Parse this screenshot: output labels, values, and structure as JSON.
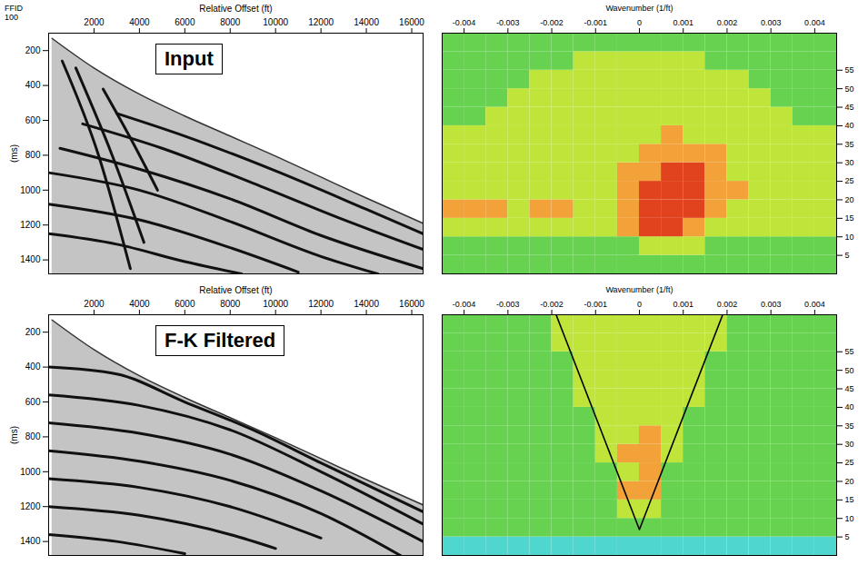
{
  "chart_data": [
    {
      "type": "seismic_gather",
      "title": "Input",
      "corner_label": [
        "FFID",
        "100"
      ],
      "xlabel": "Relative Offset (ft)",
      "ylabel": "(ms)",
      "xlim": [
        0,
        16500
      ],
      "xticks": [
        2000,
        4000,
        6000,
        8000,
        10000,
        12000,
        14000,
        16000
      ],
      "ylim": [
        100,
        1480
      ],
      "yticks": [
        200,
        400,
        600,
        800,
        1000,
        1200,
        1400
      ],
      "first_break": {
        "offset": [
          150,
          2000,
          4000,
          6000,
          8000,
          10000,
          12000,
          14000,
          16500
        ],
        "time": [
          130,
          300,
          450,
          575,
          690,
          805,
          925,
          1045,
          1190
        ]
      },
      "events": [
        {
          "offset": [
            600,
            2200,
            3600
          ],
          "time": [
            260,
            800,
            1450
          ]
        },
        {
          "offset": [
            1200,
            2800,
            4200
          ],
          "time": [
            300,
            800,
            1300
          ]
        },
        {
          "offset": [
            2400,
            3600,
            4800
          ],
          "time": [
            420,
            700,
            1000
          ]
        },
        {
          "offset": [
            3000,
            6000,
            10000,
            14000,
            16500
          ],
          "time": [
            560,
            690,
            890,
            1110,
            1250
          ]
        },
        {
          "offset": [
            1500,
            5000,
            9000,
            13000,
            16500
          ],
          "time": [
            620,
            760,
            960,
            1170,
            1340
          ]
        },
        {
          "offset": [
            500,
            4000,
            8000,
            12000,
            16500
          ],
          "time": [
            760,
            880,
            1050,
            1260,
            1450
          ]
        },
        {
          "offset": [
            0,
            4000,
            8000,
            12000,
            14500
          ],
          "time": [
            900,
            1000,
            1180,
            1380,
            1480
          ]
        },
        {
          "offset": [
            0,
            4000,
            8000,
            11000
          ],
          "time": [
            1080,
            1170,
            1330,
            1470
          ]
        },
        {
          "offset": [
            0,
            3000,
            6000,
            8500
          ],
          "time": [
            1250,
            1310,
            1410,
            1480
          ]
        }
      ]
    },
    {
      "type": "fk_spectrum",
      "xlabel": "Wavenumber (1/ft)",
      "xlim": [
        -0.0045,
        0.0045
      ],
      "xticks": [
        -0.004,
        -0.003,
        -0.002,
        -0.001,
        0,
        0.001,
        0.002,
        0.003,
        0.004
      ],
      "ylim": [
        0,
        65
      ],
      "yticks": [
        5,
        10,
        15,
        20,
        25,
        30,
        35,
        40,
        45,
        50,
        55
      ],
      "wavenumber_bins": [
        -0.0045,
        -0.004,
        -0.0035,
        -0.003,
        -0.0025,
        -0.002,
        -0.0015,
        -0.001,
        -0.0005,
        0,
        0.0005,
        0.001,
        0.0015,
        0.002,
        0.0025,
        0.003,
        0.0035,
        0.004,
        0.0045
      ],
      "frequency_bins": [
        0,
        5,
        10,
        15,
        20,
        25,
        30,
        35,
        40,
        45,
        50,
        55,
        60,
        65
      ],
      "cells": [
        [
          1,
          1,
          1,
          1,
          1,
          1,
          1,
          1,
          1,
          1,
          1,
          1,
          1,
          1,
          1,
          1,
          1,
          1
        ],
        [
          1,
          1,
          1,
          1,
          1,
          1,
          1,
          1,
          1,
          2,
          2,
          2,
          1,
          1,
          1,
          1,
          1,
          1
        ],
        [
          2,
          2,
          2,
          2,
          2,
          2,
          2,
          2,
          3,
          4,
          4,
          3,
          2,
          2,
          2,
          2,
          2,
          2
        ],
        [
          3,
          3,
          3,
          2,
          3,
          3,
          2,
          2,
          3,
          4,
          4,
          4,
          3,
          2,
          2,
          2,
          2,
          2
        ],
        [
          2,
          2,
          2,
          2,
          2,
          2,
          2,
          2,
          3,
          4,
          4,
          4,
          3,
          3,
          2,
          2,
          2,
          2
        ],
        [
          2,
          2,
          2,
          2,
          2,
          2,
          2,
          2,
          3,
          3,
          4,
          4,
          3,
          2,
          2,
          2,
          2,
          2
        ],
        [
          2,
          2,
          2,
          2,
          2,
          2,
          2,
          2,
          2,
          3,
          3,
          3,
          3,
          2,
          2,
          2,
          2,
          2
        ],
        [
          2,
          2,
          2,
          2,
          2,
          2,
          2,
          2,
          2,
          2,
          3,
          2,
          2,
          2,
          2,
          2,
          2,
          2
        ],
        [
          1,
          1,
          2,
          2,
          2,
          2,
          2,
          2,
          2,
          2,
          2,
          2,
          2,
          2,
          2,
          2,
          1,
          1
        ],
        [
          1,
          1,
          1,
          2,
          2,
          2,
          2,
          2,
          2,
          2,
          2,
          2,
          2,
          2,
          2,
          1,
          1,
          1
        ],
        [
          1,
          1,
          1,
          1,
          2,
          2,
          2,
          2,
          2,
          2,
          2,
          2,
          2,
          2,
          1,
          1,
          1,
          1
        ],
        [
          1,
          1,
          1,
          1,
          1,
          1,
          2,
          2,
          2,
          2,
          2,
          2,
          1,
          1,
          1,
          1,
          1,
          1
        ],
        [
          1,
          1,
          1,
          1,
          1,
          1,
          1,
          1,
          1,
          1,
          1,
          1,
          1,
          1,
          1,
          1,
          1,
          1
        ]
      ]
    },
    {
      "type": "seismic_gather",
      "title": "F-K Filtered",
      "xlabel": "Relative Offset (ft)",
      "ylabel": "(ms)",
      "xlim": [
        0,
        16500
      ],
      "xticks": [
        2000,
        4000,
        6000,
        8000,
        10000,
        12000,
        14000,
        16000
      ],
      "ylim": [
        100,
        1480
      ],
      "yticks": [
        200,
        400,
        600,
        800,
        1000,
        1200,
        1400
      ],
      "first_break": {
        "offset": [
          150,
          2000,
          4000,
          6000,
          8000,
          10000,
          12000,
          14000,
          16500
        ],
        "time": [
          130,
          300,
          450,
          575,
          690,
          805,
          925,
          1045,
          1190
        ]
      },
      "events": [
        {
          "offset": [
            0,
            3000,
            6000,
            9000,
            12000,
            16500
          ],
          "time": [
            400,
            440,
            600,
            760,
            950,
            1230
          ]
        },
        {
          "offset": [
            0,
            4000,
            8000,
            12000,
            16500
          ],
          "time": [
            560,
            620,
            760,
            1000,
            1300
          ]
        },
        {
          "offset": [
            0,
            4000,
            8000,
            12000,
            16500
          ],
          "time": [
            720,
            780,
            900,
            1110,
            1400
          ]
        },
        {
          "offset": [
            0,
            4000,
            8000,
            12000,
            15500
          ],
          "time": [
            880,
            940,
            1050,
            1240,
            1480
          ]
        },
        {
          "offset": [
            0,
            4000,
            8000,
            12000
          ],
          "time": [
            1040,
            1090,
            1200,
            1380
          ]
        },
        {
          "offset": [
            0,
            4000,
            8000,
            10000
          ],
          "time": [
            1200,
            1250,
            1360,
            1440
          ]
        },
        {
          "offset": [
            0,
            3000,
            6000
          ],
          "time": [
            1360,
            1400,
            1470
          ]
        }
      ]
    },
    {
      "type": "fk_spectrum",
      "xlabel": "Wavenumber (1/ft)",
      "xlim": [
        -0.0045,
        0.0045
      ],
      "xticks": [
        -0.004,
        -0.003,
        -0.002,
        -0.001,
        0,
        0.001,
        0.002,
        0.003,
        0.004
      ],
      "ylim": [
        0,
        65
      ],
      "yticks": [
        5,
        10,
        15,
        20,
        25,
        30,
        35,
        40,
        45,
        50,
        55
      ],
      "wavenumber_bins": [
        -0.0045,
        -0.004,
        -0.0035,
        -0.003,
        -0.0025,
        -0.002,
        -0.0015,
        -0.001,
        -0.0005,
        0,
        0.0005,
        0.001,
        0.0015,
        0.002,
        0.0025,
        0.003,
        0.0035,
        0.004,
        0.0045
      ],
      "frequency_bins": [
        0,
        5,
        10,
        15,
        20,
        25,
        30,
        35,
        40,
        45,
        50,
        55,
        60,
        65
      ],
      "cells": [
        [
          0,
          0,
          0,
          0,
          0,
          0,
          0,
          0,
          0,
          0,
          0,
          0,
          0,
          0,
          0,
          0,
          0,
          0
        ],
        [
          1,
          1,
          1,
          1,
          1,
          1,
          1,
          1,
          1,
          1,
          1,
          1,
          1,
          1,
          1,
          1,
          1,
          1
        ],
        [
          1,
          1,
          1,
          1,
          1,
          1,
          1,
          1,
          2,
          2,
          1,
          1,
          1,
          1,
          1,
          1,
          1,
          1
        ],
        [
          1,
          1,
          1,
          1,
          1,
          1,
          1,
          1,
          3,
          3,
          1,
          1,
          1,
          1,
          1,
          1,
          1,
          1
        ],
        [
          1,
          1,
          1,
          1,
          1,
          1,
          1,
          1,
          2,
          3,
          1,
          1,
          1,
          1,
          1,
          1,
          1,
          1
        ],
        [
          1,
          1,
          1,
          1,
          1,
          1,
          1,
          2,
          3,
          3,
          2,
          1,
          1,
          1,
          1,
          1,
          1,
          1
        ],
        [
          1,
          1,
          1,
          1,
          1,
          1,
          1,
          2,
          2,
          3,
          2,
          1,
          1,
          1,
          1,
          1,
          1,
          1
        ],
        [
          1,
          1,
          1,
          1,
          1,
          1,
          1,
          2,
          2,
          2,
          2,
          1,
          1,
          1,
          1,
          1,
          1,
          1
        ],
        [
          1,
          1,
          1,
          1,
          1,
          1,
          2,
          2,
          2,
          2,
          2,
          2,
          1,
          1,
          1,
          1,
          1,
          1
        ],
        [
          1,
          1,
          1,
          1,
          1,
          1,
          2,
          2,
          2,
          2,
          2,
          2,
          1,
          1,
          1,
          1,
          1,
          1
        ],
        [
          1,
          1,
          1,
          1,
          1,
          1,
          2,
          2,
          2,
          2,
          2,
          2,
          1,
          1,
          1,
          1,
          1,
          1
        ],
        [
          1,
          1,
          1,
          1,
          1,
          2,
          2,
          2,
          2,
          2,
          2,
          2,
          2,
          1,
          1,
          1,
          1,
          1
        ],
        [
          1,
          1,
          1,
          1,
          1,
          2,
          2,
          2,
          2,
          2,
          2,
          2,
          2,
          1,
          1,
          1,
          1,
          1
        ]
      ],
      "filter": {
        "wavenumber": [
          -0.0019,
          0,
          0.0019
        ],
        "frequency": [
          65,
          7,
          65
        ]
      }
    }
  ]
}
